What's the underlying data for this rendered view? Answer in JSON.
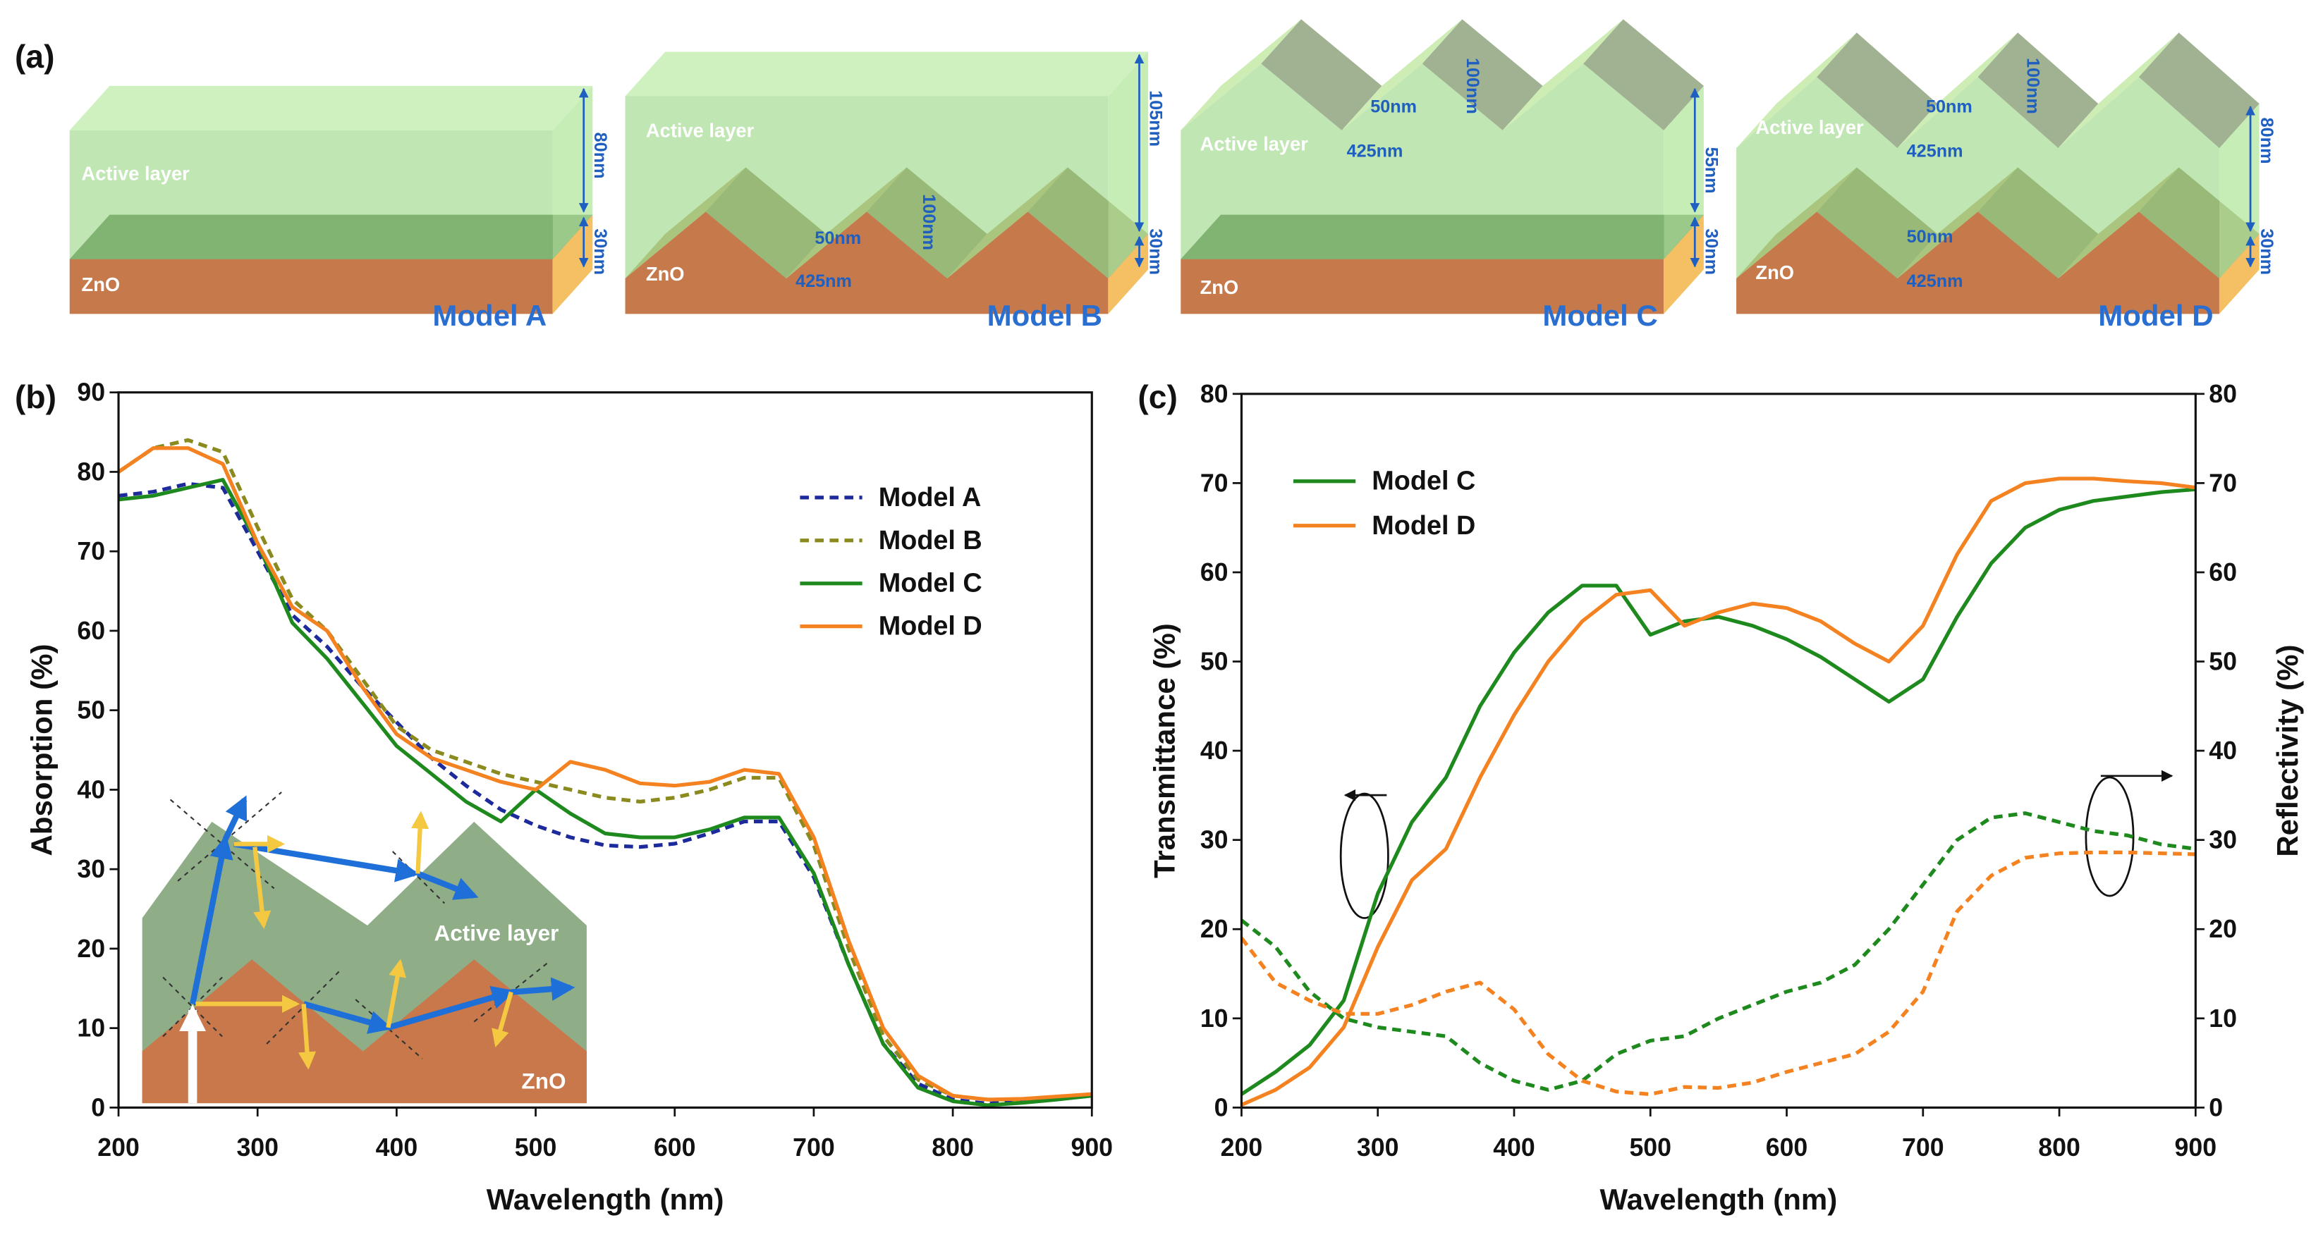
{
  "diagram": {
    "panel": "(a)",
    "models": [
      {
        "name": "Model A",
        "layers": [
          "Active layer",
          "ZnO"
        ],
        "dims": [
          "80nm",
          "30nm"
        ]
      },
      {
        "name": "Model B",
        "layers": [
          "Active layer",
          "ZnO"
        ],
        "dims": [
          "105nm",
          "30nm",
          "50nm",
          "100nm",
          "425nm"
        ]
      },
      {
        "name": "Model C",
        "layers": [
          "Active layer",
          "ZnO"
        ],
        "dims": [
          "55nm",
          "30nm",
          "50nm",
          "100nm",
          "425nm"
        ]
      },
      {
        "name": "Model D",
        "layers": [
          "Active layer",
          "ZnO"
        ],
        "dims": [
          "80nm",
          "30nm",
          "50nm",
          "100nm",
          "425nm",
          "50nm",
          "425nm"
        ]
      }
    ]
  },
  "chart_data": [
    {
      "type": "line",
      "panel": "(b)",
      "xlabel": "Wavelength (nm)",
      "ylabel": "Absorption (%)",
      "x": [
        200,
        225,
        250,
        275,
        300,
        325,
        350,
        375,
        400,
        425,
        450,
        475,
        500,
        525,
        550,
        575,
        600,
        625,
        650,
        675,
        700,
        725,
        750,
        775,
        800,
        825,
        850,
        875,
        900
      ],
      "xlim": [
        200,
        900
      ],
      "xticks": [
        200,
        300,
        400,
        500,
        600,
        700,
        800,
        900
      ],
      "ylim": [
        0,
        90
      ],
      "yticks": [
        0,
        10,
        20,
        30,
        40,
        50,
        60,
        70,
        80,
        90
      ],
      "legend": "upper right",
      "inset_labels": [
        "Active layer",
        "ZnO"
      ],
      "series": [
        {
          "name": "Model A",
          "color": "#1c2a9c",
          "dashed": true,
          "values": [
            77,
            77.5,
            78.5,
            78,
            70,
            62,
            58,
            53,
            48.5,
            44,
            40.5,
            37.5,
            35.5,
            34,
            33,
            32.8,
            33.2,
            34.5,
            36,
            36,
            29,
            18,
            8,
            3,
            1,
            0.5,
            0.8,
            1.2,
            1.5
          ]
        },
        {
          "name": "Model B",
          "color": "#8a8a1e",
          "dashed": true,
          "values": [
            80,
            83,
            84,
            82.5,
            73,
            64,
            60,
            54,
            48,
            45,
            43.5,
            42,
            41,
            40,
            39,
            38.5,
            39,
            40,
            41.5,
            41.5,
            33,
            20,
            9,
            3.5,
            1.5,
            1,
            1,
            1.3,
            1.6
          ]
        },
        {
          "name": "Model C",
          "color": "#1e8a1e",
          "dashed": false,
          "values": [
            76.5,
            77,
            78,
            79,
            71,
            61,
            56.5,
            51,
            45.5,
            42,
            38.5,
            36,
            40,
            37,
            34.5,
            34,
            34,
            35,
            36.5,
            36.5,
            29.5,
            18,
            8,
            2.5,
            0.8,
            0.3,
            0.6,
            1,
            1.5
          ]
        },
        {
          "name": "Model D",
          "color": "#f58220",
          "dashed": false,
          "values": [
            80,
            83,
            83,
            81,
            71,
            63,
            60,
            53,
            47,
            44,
            42.5,
            41,
            40,
            43.5,
            42.5,
            40.8,
            40.5,
            41,
            42.5,
            42,
            34,
            21,
            10,
            4,
            1.5,
            1,
            1.1,
            1.4,
            1.7
          ]
        }
      ]
    },
    {
      "type": "line",
      "panel": "(c)",
      "xlabel": "Wavelength (nm)",
      "ylabel": "Transmittance (%)",
      "y2label": "Reflectivity (%)",
      "x": [
        200,
        225,
        250,
        275,
        300,
        325,
        350,
        375,
        400,
        425,
        450,
        475,
        500,
        525,
        550,
        575,
        600,
        625,
        650,
        675,
        700,
        725,
        750,
        775,
        800,
        825,
        850,
        875,
        900
      ],
      "xlim": [
        200,
        900
      ],
      "xticks": [
        200,
        300,
        400,
        500,
        600,
        700,
        800,
        900
      ],
      "ylim": [
        0,
        80
      ],
      "yticks": [
        0,
        10,
        20,
        30,
        40,
        50,
        60,
        70,
        80
      ],
      "y2lim": [
        0,
        80
      ],
      "y2ticks": [
        0,
        10,
        20,
        30,
        40,
        50,
        60,
        70,
        80
      ],
      "legend": "upper left",
      "series": [
        {
          "name": "Model C",
          "color": "#1e8a1e",
          "dashed": false,
          "axis": "y",
          "values": [
            1.5,
            4,
            7,
            12,
            24,
            32,
            37,
            45,
            51,
            55.5,
            58.5,
            58.5,
            53,
            54.5,
            55,
            54,
            52.5,
            50.5,
            48,
            45.5,
            48,
            55,
            61,
            65,
            67,
            68,
            68.5,
            69,
            69.3
          ]
        },
        {
          "name": "Model D",
          "color": "#f58220",
          "dashed": false,
          "axis": "y",
          "values": [
            0.3,
            2,
            4.5,
            9,
            18,
            25.5,
            29,
            37,
            44,
            50,
            54.5,
            57.5,
            58,
            54,
            55.5,
            56.5,
            56,
            54.5,
            52,
            50,
            54,
            62,
            68,
            70,
            70.5,
            70.5,
            70.2,
            70,
            69.5
          ]
        },
        {
          "color": "#1e8a1e",
          "dashed": true,
          "axis": "y2",
          "values": [
            21,
            18,
            13,
            10,
            9,
            8.5,
            8,
            5,
            3,
            2,
            3,
            6,
            7.5,
            8,
            10,
            11.5,
            13,
            14,
            16,
            20,
            25,
            30,
            32.5,
            33,
            32,
            31,
            30.5,
            29.5,
            29
          ]
        },
        {
          "color": "#f58220",
          "dashed": true,
          "axis": "y2",
          "values": [
            19,
            14,
            12,
            10.5,
            10.5,
            11.5,
            13,
            14,
            11,
            6,
            3,
            1.8,
            1.5,
            2.3,
            2.2,
            2.8,
            4,
            5,
            6,
            8.5,
            13,
            22,
            26,
            28,
            28.5,
            28.6,
            28.6,
            28.5,
            28.4
          ]
        }
      ]
    }
  ]
}
